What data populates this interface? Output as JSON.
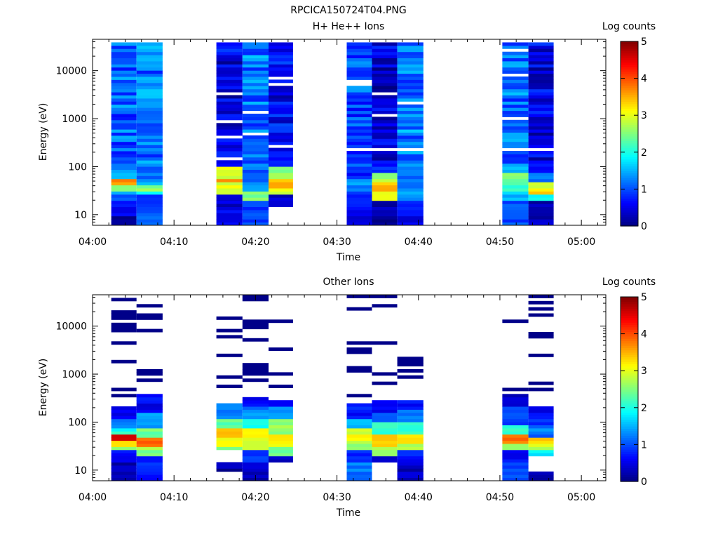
{
  "figure_title": "RPCICA150724T04.PNG",
  "colors": {
    "colormap": [
      "#00007f",
      "#0000ff",
      "#007fff",
      "#00ffff",
      "#7fff7f",
      "#ffff00",
      "#ff7f00",
      "#ff0000",
      "#7f0000"
    ]
  },
  "chart_data": [
    {
      "type": "heatmap",
      "title": "H+ He++ Ions",
      "xlabel": "Time",
      "ylabel": "Energy (eV)",
      "colorbar_label": "Log counts",
      "colorbar_range": [
        0,
        5
      ],
      "colorbar_ticks": [
        "0",
        "1",
        "2",
        "3",
        "4",
        "5"
      ],
      "y_scale": "log",
      "y_range_eV": [
        6,
        45000
      ],
      "y_ticks": [
        {
          "value": 10,
          "label": "10"
        },
        {
          "value": 100,
          "label": "100"
        },
        {
          "value": 1000,
          "label": "1000"
        },
        {
          "value": 10000,
          "label": "10000"
        }
      ],
      "x_range_min": [
        0,
        63
      ],
      "x_ticks": [
        {
          "value": 0,
          "label": "04:00"
        },
        {
          "value": 10,
          "label": "04:10"
        },
        {
          "value": 20,
          "label": "04:20"
        },
        {
          "value": 30,
          "label": "04:30"
        },
        {
          "value": 40,
          "label": "04:40"
        },
        {
          "value": 50,
          "label": "04:50"
        },
        {
          "value": 60,
          "label": "05:00"
        }
      ],
      "blocks": [
        {
          "t0": 2.3,
          "t1": 5.4,
          "pattern": "H_a"
        },
        {
          "t0": 5.4,
          "t1": 8.6,
          "pattern": "H_b"
        },
        {
          "t0": 15.2,
          "t1": 18.4,
          "pattern": "H_c"
        },
        {
          "t0": 18.4,
          "t1": 21.6,
          "pattern": "H_d"
        },
        {
          "t0": 21.6,
          "t1": 24.6,
          "pattern": "H_e"
        },
        {
          "t0": 31.2,
          "t1": 34.3,
          "pattern": "H_f"
        },
        {
          "t0": 34.3,
          "t1": 37.4,
          "pattern": "H_g"
        },
        {
          "t0": 37.4,
          "t1": 40.6,
          "pattern": "H_h"
        },
        {
          "t0": 50.3,
          "t1": 53.5,
          "pattern": "H_i"
        },
        {
          "t0": 53.5,
          "t1": 56.6,
          "pattern": "H_j"
        }
      ],
      "profiles": {
        "H_a": [
          [
            6,
            9,
            0.1
          ],
          [
            9,
            14,
            0.5
          ],
          [
            14,
            20,
            0.8
          ],
          [
            20,
            26,
            1.0
          ],
          [
            26,
            33,
            1.4
          ],
          [
            33,
            40,
            2.6
          ],
          [
            40,
            60,
            3.6
          ],
          [
            60,
            100,
            1.4
          ],
          [
            100,
            40000,
            1.1
          ]
        ],
        "H_b": [
          [
            6,
            15,
            1.1
          ],
          [
            15,
            25,
            1.0
          ],
          [
            25,
            30,
            1.8
          ],
          [
            30,
            40,
            2.6
          ],
          [
            40,
            60,
            1.5
          ],
          [
            60,
            40000,
            1.2
          ]
        ],
        "H_c": [
          [
            6,
            12,
            0.6
          ],
          [
            12,
            25,
            0.4
          ],
          [
            25,
            33,
            2.8
          ],
          [
            33,
            45,
            3.0
          ],
          [
            45,
            60,
            3.8
          ],
          [
            60,
            100,
            2.9
          ],
          [
            100,
            40000,
            0.5
          ]
        ],
        "H_d": [
          [
            6,
            12,
            1.0
          ],
          [
            12,
            20,
            0.9
          ],
          [
            20,
            30,
            2.5
          ],
          [
            30,
            50,
            1.4
          ],
          [
            50,
            100,
            1.1
          ],
          [
            100,
            40000,
            1.2
          ]
        ],
        "H_e": [
          [
            15,
            25,
            0.3
          ],
          [
            25,
            35,
            3.0
          ],
          [
            35,
            60,
            3.5
          ],
          [
            60,
            100,
            2.6
          ],
          [
            100,
            40000,
            0.6
          ]
        ],
        "H_f": [
          [
            6,
            12,
            0.4
          ],
          [
            12,
            30,
            0.8
          ],
          [
            30,
            60,
            1.3
          ],
          [
            60,
            100,
            0.7
          ],
          [
            100,
            40000,
            1.0
          ]
        ],
        "H_g": [
          [
            6,
            9,
            0.0
          ],
          [
            9,
            14,
            0.3
          ],
          [
            14,
            20,
            0.2
          ],
          [
            20,
            30,
            2.9
          ],
          [
            30,
            50,
            3.4
          ],
          [
            50,
            70,
            2.7
          ],
          [
            70,
            100,
            0.8
          ],
          [
            100,
            40000,
            0.4
          ]
        ],
        "H_h": [
          [
            6,
            10,
            0.5
          ],
          [
            10,
            20,
            0.9
          ],
          [
            20,
            35,
            1.4
          ],
          [
            35,
            100,
            1.1
          ],
          [
            100,
            40000,
            1.2
          ]
        ],
        "H_i": [
          [
            6,
            20,
            1.0
          ],
          [
            20,
            30,
            1.6
          ],
          [
            30,
            45,
            2.1
          ],
          [
            45,
            70,
            2.5
          ],
          [
            70,
            100,
            1.5
          ],
          [
            100,
            40000,
            1.2
          ]
        ],
        "H_j": [
          [
            6,
            20,
            0.3
          ],
          [
            20,
            25,
            1.8
          ],
          [
            25,
            35,
            3.3
          ],
          [
            35,
            45,
            3.0
          ],
          [
            45,
            70,
            1.2
          ],
          [
            70,
            40000,
            0.5
          ]
        ]
      }
    },
    {
      "type": "heatmap",
      "title": "Other Ions",
      "xlabel": "Time",
      "ylabel": "Energy (eV)",
      "colorbar_label": "Log counts",
      "colorbar_range": [
        0,
        5
      ],
      "colorbar_ticks": [
        "0",
        "1",
        "2",
        "3",
        "4",
        "5"
      ],
      "y_scale": "log",
      "y_range_eV": [
        6,
        45000
      ],
      "y_ticks": [
        {
          "value": 10,
          "label": "10"
        },
        {
          "value": 100,
          "label": "100"
        },
        {
          "value": 1000,
          "label": "1000"
        },
        {
          "value": 10000,
          "label": "10000"
        }
      ],
      "x_range_min": [
        0,
        63
      ],
      "x_ticks": [
        {
          "value": 0,
          "label": "04:00"
        },
        {
          "value": 10,
          "label": "04:10"
        },
        {
          "value": 20,
          "label": "04:20"
        },
        {
          "value": 30,
          "label": "04:30"
        },
        {
          "value": 40,
          "label": "04:40"
        },
        {
          "value": 50,
          "label": "04:50"
        },
        {
          "value": 60,
          "label": "05:00"
        }
      ],
      "blocks": [
        {
          "t0": 2.3,
          "t1": 5.4,
          "pattern": "O_a"
        },
        {
          "t0": 5.4,
          "t1": 8.6,
          "pattern": "O_b"
        },
        {
          "t0": 15.2,
          "t1": 18.4,
          "pattern": "O_c"
        },
        {
          "t0": 18.4,
          "t1": 21.6,
          "pattern": "O_d"
        },
        {
          "t0": 21.6,
          "t1": 24.6,
          "pattern": "O_e"
        },
        {
          "t0": 31.2,
          "t1": 34.3,
          "pattern": "O_f"
        },
        {
          "t0": 34.3,
          "t1": 37.4,
          "pattern": "O_g"
        },
        {
          "t0": 37.4,
          "t1": 40.6,
          "pattern": "O_h"
        },
        {
          "t0": 50.3,
          "t1": 53.5,
          "pattern": "O_i"
        },
        {
          "t0": 53.5,
          "t1": 56.6,
          "pattern": "O_j"
        }
      ],
      "profiles": {
        "O_a": [
          [
            6,
            10,
            0.4
          ],
          [
            10,
            15,
            0.2
          ],
          [
            15,
            25,
            0.6
          ],
          [
            25,
            30,
            2.6
          ],
          [
            30,
            40,
            3.4
          ],
          [
            40,
            60,
            4.7
          ],
          [
            60,
            80,
            2.0
          ],
          [
            80,
            120,
            1.2
          ],
          [
            120,
            220,
            0.6
          ]
        ],
        "O_b": [
          [
            6,
            20,
            0.8
          ],
          [
            20,
            25,
            2.4
          ],
          [
            25,
            30,
            2.8
          ],
          [
            30,
            50,
            3.8
          ],
          [
            50,
            80,
            2.4
          ],
          [
            80,
            150,
            1.4
          ],
          [
            150,
            400,
            0.6
          ]
        ],
        "O_c": [
          [
            9,
            14,
            0.2
          ],
          [
            25,
            30,
            2.6
          ],
          [
            30,
            45,
            3.2
          ],
          [
            45,
            70,
            3.6
          ],
          [
            70,
            120,
            2.4
          ],
          [
            120,
            230,
            1.2
          ]
        ],
        "O_d": [
          [
            6,
            15,
            0.3
          ],
          [
            15,
            25,
            0.8
          ],
          [
            25,
            40,
            2.9
          ],
          [
            40,
            70,
            3.1
          ],
          [
            70,
            120,
            2.0
          ],
          [
            120,
            200,
            1.3
          ],
          [
            200,
            350,
            0.6
          ]
        ],
        "O_e": [
          [
            15,
            20,
            0.4
          ],
          [
            20,
            30,
            2.4
          ],
          [
            30,
            60,
            3.1
          ],
          [
            60,
            120,
            2.6
          ],
          [
            120,
            200,
            1.3
          ],
          [
            200,
            300,
            0.6
          ]
        ],
        "O_f": [
          [
            6,
            15,
            1.2
          ],
          [
            15,
            25,
            0.8
          ],
          [
            25,
            40,
            2.6
          ],
          [
            40,
            70,
            3.0
          ],
          [
            70,
            120,
            1.6
          ],
          [
            120,
            250,
            0.7
          ]
        ],
        "O_g": [
          [
            15,
            20,
            0.5
          ],
          [
            20,
            30,
            2.6
          ],
          [
            30,
            60,
            3.4
          ],
          [
            60,
            100,
            2.1
          ],
          [
            100,
            150,
            1.2
          ],
          [
            150,
            300,
            0.6
          ]
        ],
        "O_h": [
          [
            6,
            15,
            0.3
          ],
          [
            15,
            25,
            0.7
          ],
          [
            25,
            35,
            2.8
          ],
          [
            35,
            60,
            3.3
          ],
          [
            60,
            100,
            2.2
          ],
          [
            100,
            180,
            1.2
          ],
          [
            180,
            300,
            0.6
          ]
        ],
        "O_i": [
          [
            6,
            15,
            1.0
          ],
          [
            15,
            25,
            0.6
          ],
          [
            25,
            35,
            2.6
          ],
          [
            35,
            60,
            3.8
          ],
          [
            60,
            90,
            2.0
          ],
          [
            90,
            200,
            0.9
          ],
          [
            200,
            400,
            0.3
          ]
        ],
        "O_j": [
          [
            6,
            10,
            0.2
          ],
          [
            20,
            25,
            1.8
          ],
          [
            25,
            35,
            2.9
          ],
          [
            35,
            50,
            3.4
          ],
          [
            50,
            80,
            1.2
          ],
          [
            80,
            120,
            0.9
          ],
          [
            120,
            200,
            0.6
          ]
        ]
      }
    }
  ]
}
